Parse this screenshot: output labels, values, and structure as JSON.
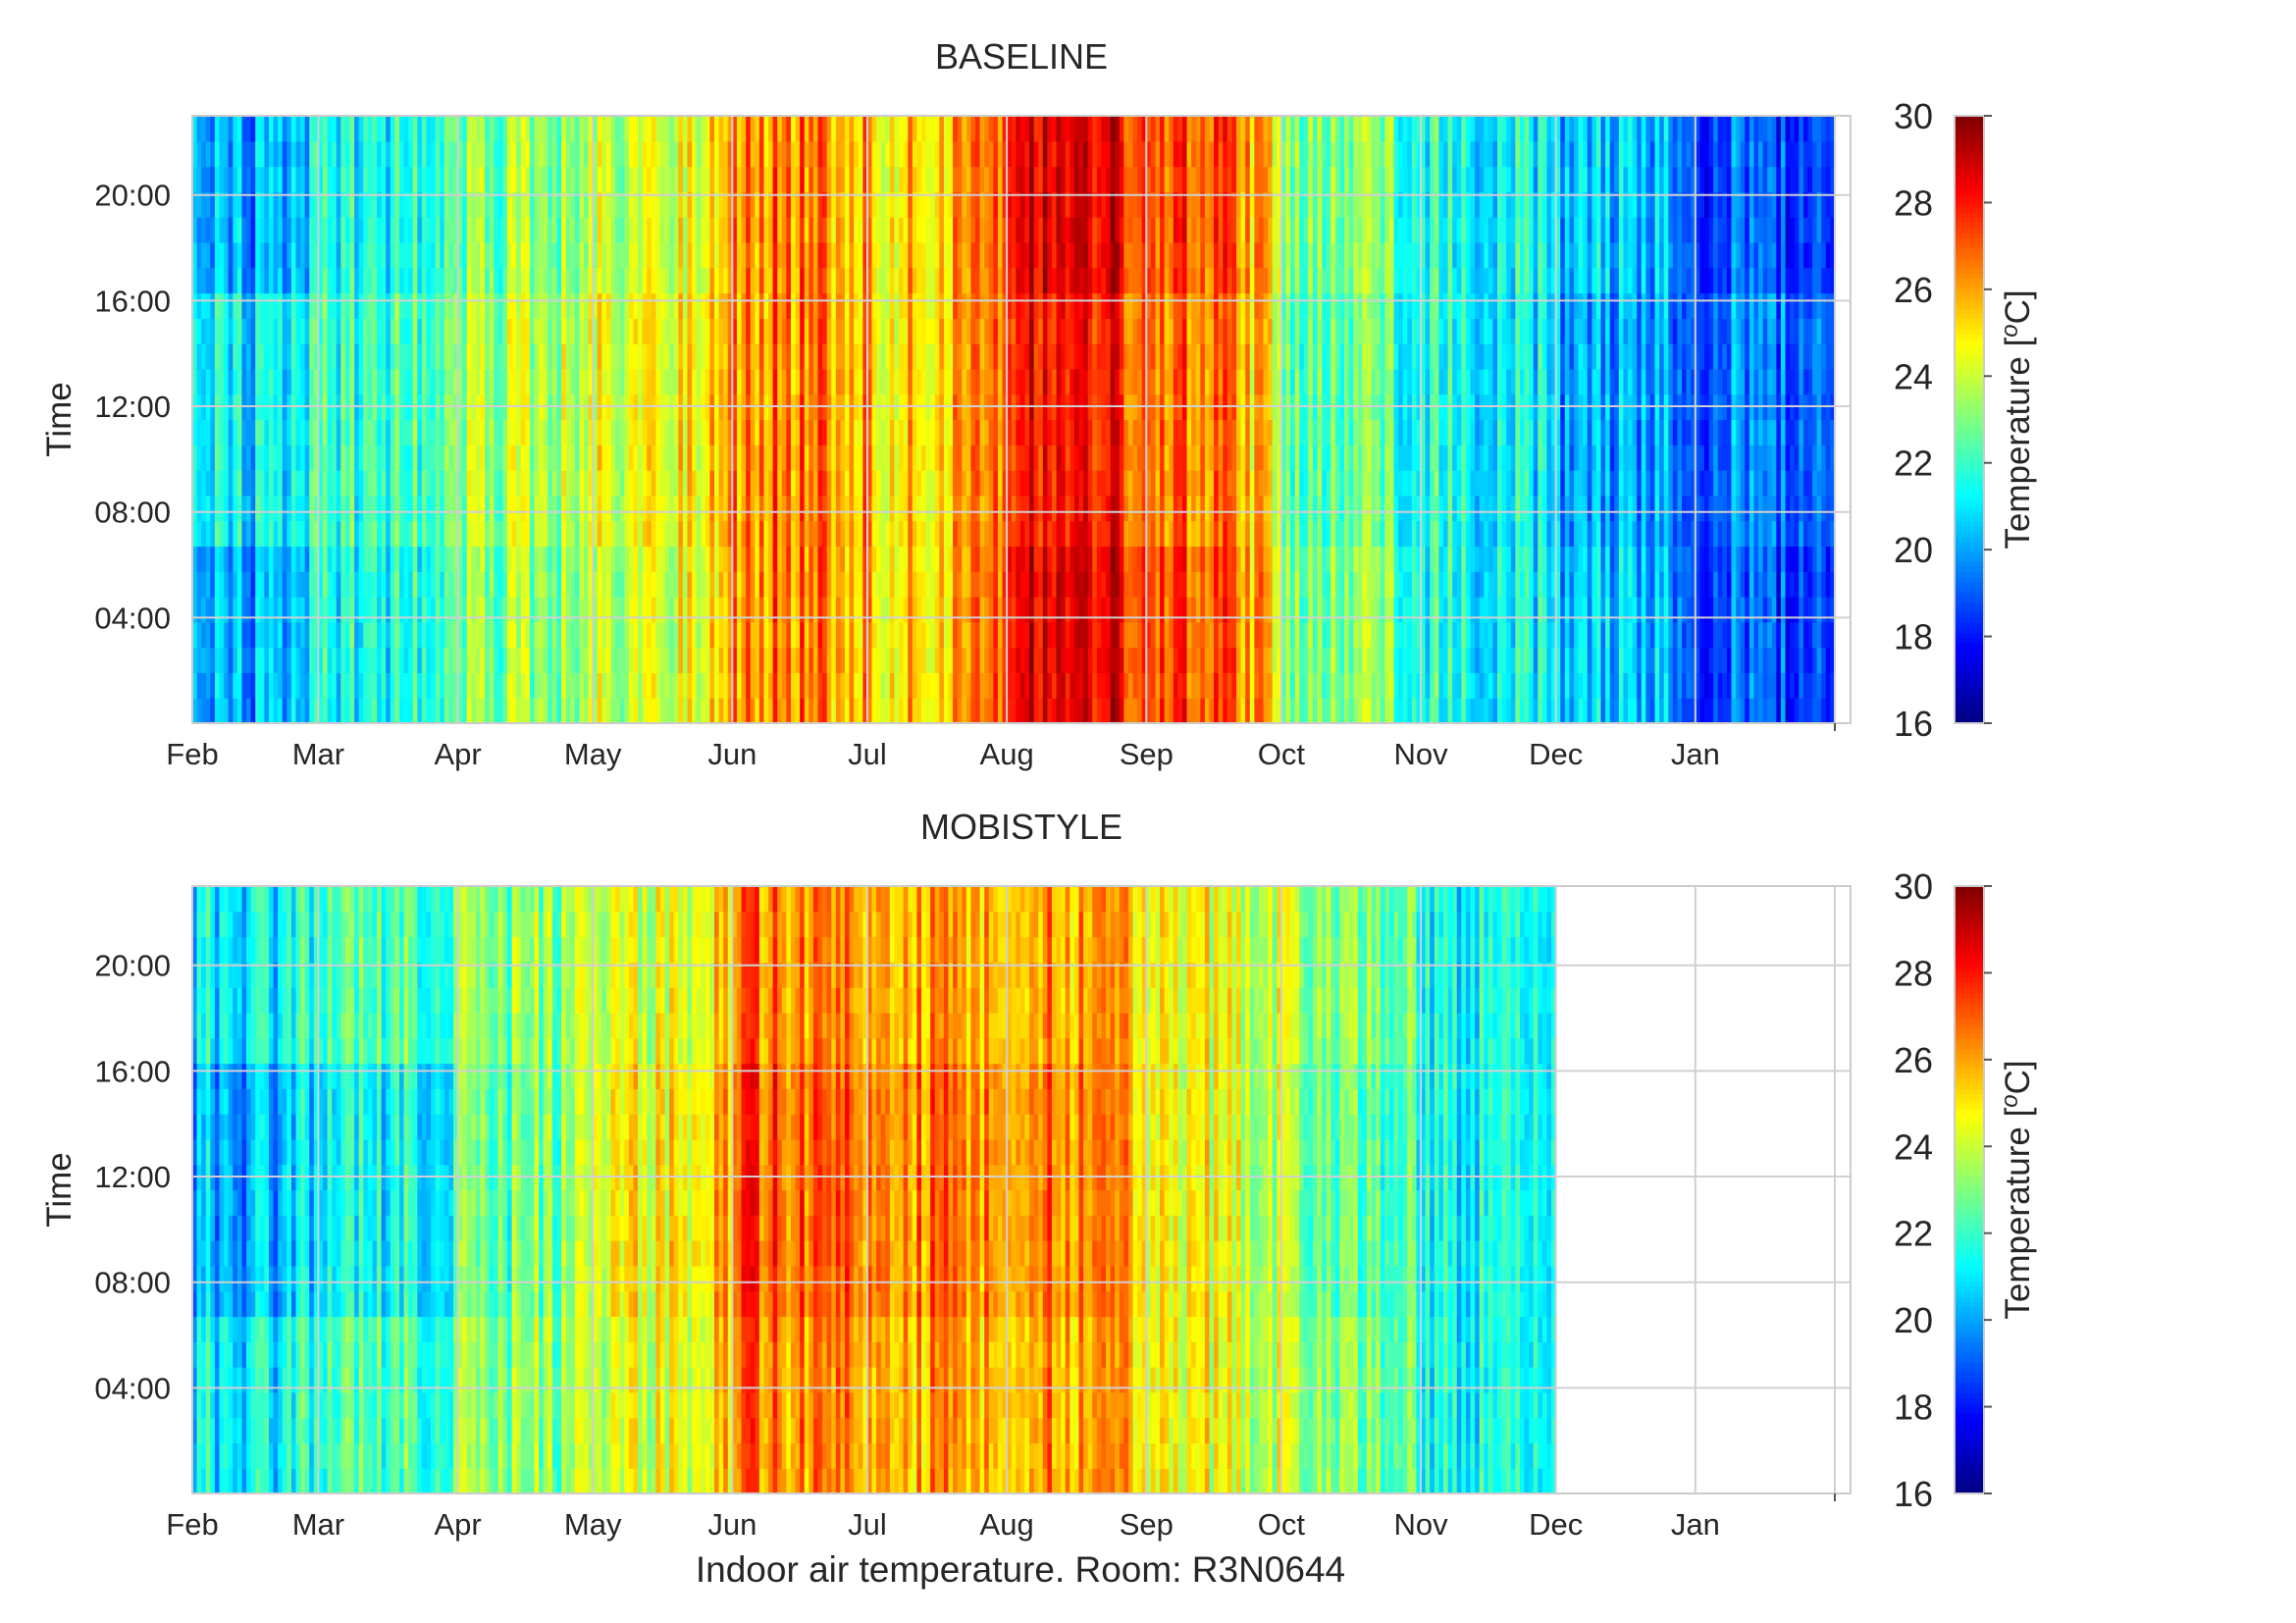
{
  "figure": {
    "xlabel": "Indoor air temperature. Room: R3N0644"
  },
  "colorbar": {
    "label": "Temperature [",
    "label_sup": "o",
    "label_unit": "C]",
    "min": 16,
    "max": 30,
    "ticks": [
      "16",
      "18",
      "20",
      "22",
      "24",
      "26",
      "28",
      "30"
    ],
    "colormap": "jet"
  },
  "chart_data": [
    {
      "type": "heatmap",
      "title": "BASELINE",
      "ylabel": "Time",
      "x_ticks": [
        "Feb",
        "Mar",
        "Apr",
        "May",
        "Jun",
        "Jul",
        "Aug",
        "Sep",
        "Oct",
        "Nov",
        "Dec",
        "Jan"
      ],
      "y_ticks": [
        "04:00",
        "08:00",
        "12:00",
        "16:00",
        "20:00"
      ],
      "hours": [
        0,
        23
      ],
      "days_with_data": 365,
      "color_range": [
        16,
        30
      ],
      "grid": true,
      "monthly_daily_temperature_C": {
        "Feb": {
          "night": 20.0,
          "day": 21.0
        },
        "Mar": {
          "night": 21.5,
          "day": 22.0
        },
        "Apr": {
          "night": 23.0,
          "day": 23.5
        },
        "May": {
          "night": 24.0,
          "day": 24.5
        },
        "Jun": {
          "night": 26.5,
          "day": 26.5
        },
        "Jul": {
          "night": 25.5,
          "day": 25.5
        },
        "Aug": {
          "night": 28.5,
          "day": 28.0
        },
        "Sep": {
          "night": 27.0,
          "day": 26.5
        },
        "Oct": {
          "night": 23.0,
          "day": 22.5
        },
        "Nov": {
          "night": 21.5,
          "day": 21.5
        },
        "Dec": {
          "night": 20.5,
          "day": 20.0
        },
        "Jan": {
          "night": 19.0,
          "day": 19.5
        }
      }
    },
    {
      "type": "heatmap",
      "title": "MOBISTYLE",
      "ylabel": "Time",
      "x_ticks": [
        "Feb",
        "Mar",
        "Apr",
        "May",
        "Jun",
        "Jul",
        "Aug",
        "Sep",
        "Oct",
        "Nov",
        "Dec",
        "Jan"
      ],
      "y_ticks": [
        "04:00",
        "08:00",
        "12:00",
        "16:00",
        "20:00"
      ],
      "hours": [
        0,
        23
      ],
      "days_with_data": 306,
      "color_range": [
        16,
        30
      ],
      "grid": true,
      "monthly_daily_temperature_C": {
        "Feb": {
          "night": 21.0,
          "day": 20.0
        },
        "Mar": {
          "night": 22.5,
          "day": 21.5
        },
        "Apr": {
          "night": 23.0,
          "day": 22.5
        },
        "May": {
          "night": 24.0,
          "day": 24.5
        },
        "Jun": {
          "night": 26.5,
          "day": 27.0
        },
        "Jul": {
          "night": 26.0,
          "day": 26.5
        },
        "Aug": {
          "night": 26.0,
          "day": 26.5
        },
        "Sep": {
          "night": 24.5,
          "day": 24.5
        },
        "Oct": {
          "night": 23.5,
          "day": 23.0
        },
        "Nov": {
          "night": 21.5,
          "day": 21.5
        },
        "Dec": null,
        "Jan": null
      }
    }
  ]
}
